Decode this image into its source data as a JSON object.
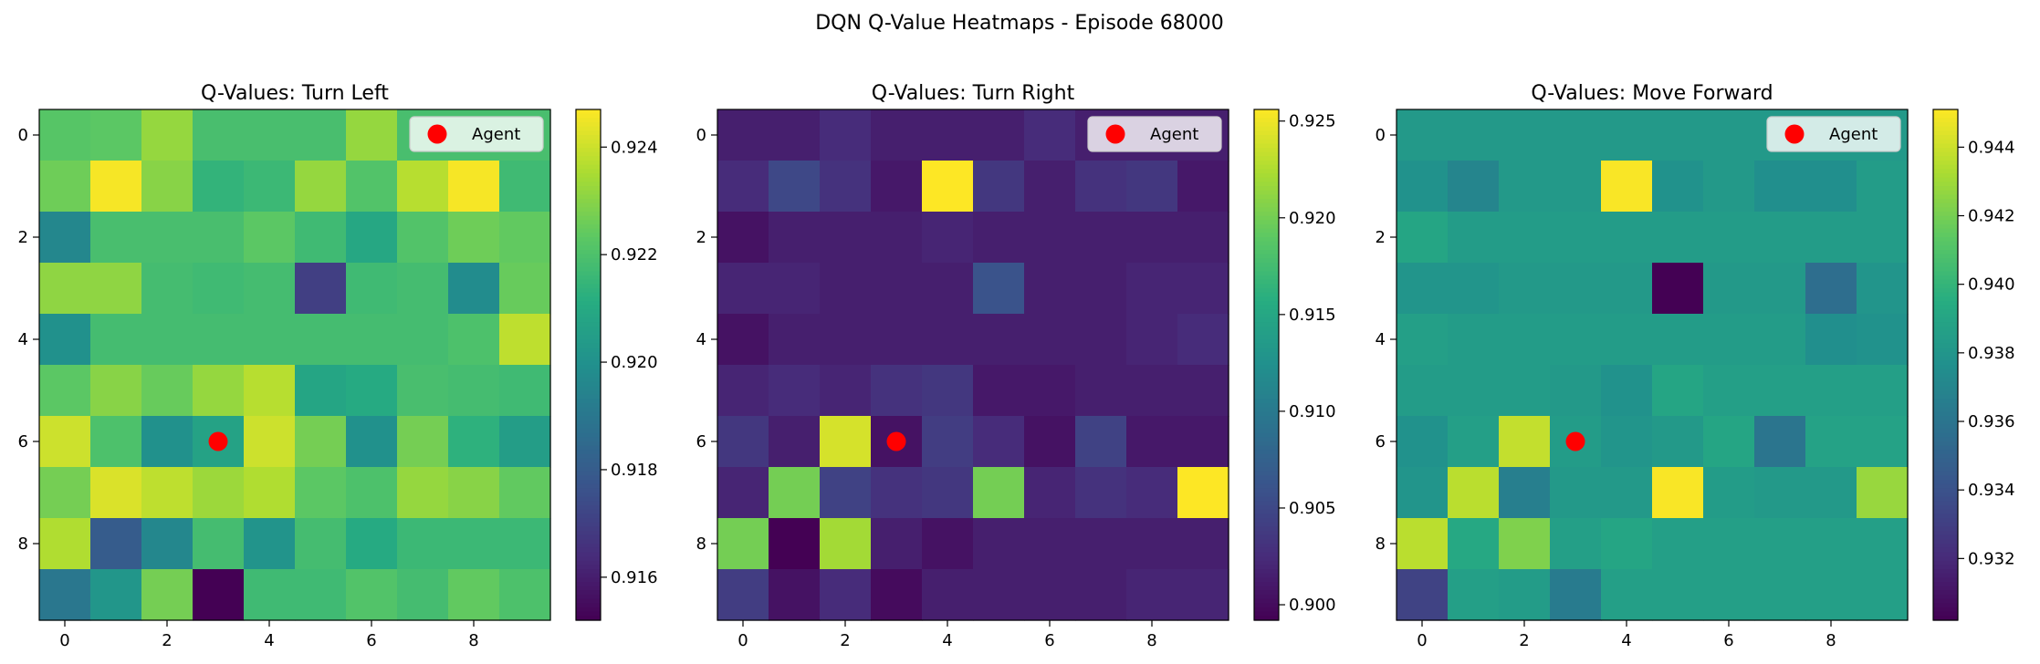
{
  "figure": {
    "title": "DQN Q-Value Heatmaps - Episode 68000"
  },
  "colors": {
    "colormap": "viridis",
    "agent_marker": "#ff0000",
    "legend_frame": "#cccccc"
  },
  "chart_data": [
    {
      "type": "heatmap",
      "title": "Q-Values: Turn Left",
      "xlabel": "",
      "ylabel": "",
      "x_ticks": [
        0,
        2,
        4,
        6,
        8
      ],
      "y_ticks": [
        0,
        2,
        4,
        6,
        8
      ],
      "colorbar": {
        "range": [
          0.9152,
          0.9247
        ],
        "ticks": [
          "0.916",
          "0.918",
          "0.920",
          "0.922",
          "0.924"
        ]
      },
      "agent": {
        "x": 3,
        "y": 6,
        "label": "Agent"
      },
      "legend": {
        "location": "upper right",
        "entries": [
          "Agent"
        ]
      },
      "values": [
        [
          0.9222,
          0.9223,
          0.9232,
          0.9219,
          0.9219,
          0.9219,
          0.9232,
          0.9219,
          0.9219,
          0.9219
        ],
        [
          0.9226,
          0.9246,
          0.923,
          0.9214,
          0.9216,
          0.9232,
          0.9221,
          0.9237,
          0.9246,
          0.9217
        ],
        [
          0.9196,
          0.9219,
          0.9219,
          0.9219,
          0.9223,
          0.9217,
          0.9209,
          0.9221,
          0.9226,
          0.9224
        ],
        [
          0.9231,
          0.9231,
          0.9218,
          0.9217,
          0.9218,
          0.917,
          0.9217,
          0.9218,
          0.9198,
          0.9225
        ],
        [
          0.92,
          0.9218,
          0.9218,
          0.9218,
          0.9218,
          0.9218,
          0.9218,
          0.9218,
          0.922,
          0.9238
        ],
        [
          0.9223,
          0.923,
          0.9225,
          0.9232,
          0.9237,
          0.9208,
          0.921,
          0.9219,
          0.9218,
          0.9217
        ],
        [
          0.924,
          0.922,
          0.92,
          0.9207,
          0.924,
          0.9227,
          0.92,
          0.9227,
          0.9213,
          0.9205
        ],
        [
          0.9227,
          0.9242,
          0.9238,
          0.9233,
          0.9236,
          0.9223,
          0.922,
          0.9232,
          0.923,
          0.9224
        ],
        [
          0.9236,
          0.918,
          0.9196,
          0.9218,
          0.9201,
          0.9218,
          0.921,
          0.9216,
          0.9216,
          0.9216
        ],
        [
          0.919,
          0.9202,
          0.9227,
          0.9152,
          0.9217,
          0.9217,
          0.9221,
          0.9218,
          0.9224,
          0.922
        ]
      ]
    },
    {
      "type": "heatmap",
      "title": "Q-Values: Turn Right",
      "xlabel": "",
      "ylabel": "",
      "x_ticks": [
        0,
        2,
        4,
        6,
        8
      ],
      "y_ticks": [
        0,
        2,
        4,
        6,
        8
      ],
      "colorbar": {
        "range": [
          0.8992,
          0.9256
        ],
        "ticks": [
          "0.900",
          "0.905",
          "0.910",
          "0.915",
          "0.920",
          "0.925"
        ]
      },
      "agent": {
        "x": 3,
        "y": 6,
        "label": "Agent"
      },
      "legend": {
        "location": "upper right",
        "entries": [
          "Agent"
        ]
      },
      "values": [
        [
          0.9015,
          0.9015,
          0.9025,
          0.9015,
          0.9015,
          0.9015,
          0.9025,
          0.9015,
          0.9015,
          0.9015
        ],
        [
          0.9025,
          0.905,
          0.903,
          0.901,
          0.9256,
          0.9035,
          0.9015,
          0.903,
          0.9035,
          0.901
        ],
        [
          0.9005,
          0.9015,
          0.9015,
          0.9015,
          0.902,
          0.9015,
          0.9015,
          0.9015,
          0.9015,
          0.9015
        ],
        [
          0.902,
          0.902,
          0.9015,
          0.9015,
          0.9015,
          0.906,
          0.9015,
          0.9015,
          0.902,
          0.902
        ],
        [
          0.9005,
          0.9015,
          0.9015,
          0.9015,
          0.9015,
          0.9015,
          0.9015,
          0.9015,
          0.902,
          0.9025
        ],
        [
          0.902,
          0.9025,
          0.902,
          0.903,
          0.9035,
          0.901,
          0.901,
          0.9015,
          0.9015,
          0.9015
        ],
        [
          0.9035,
          0.9015,
          0.924,
          0.9005,
          0.904,
          0.9025,
          0.9005,
          0.9045,
          0.901,
          0.901
        ],
        [
          0.902,
          0.92,
          0.9045,
          0.903,
          0.9035,
          0.92,
          0.902,
          0.903,
          0.9025,
          0.9256
        ],
        [
          0.92,
          0.8992,
          0.922,
          0.9015,
          0.9005,
          0.9015,
          0.9015,
          0.9015,
          0.9015,
          0.9015
        ],
        [
          0.904,
          0.9005,
          0.9025,
          0.9,
          0.9015,
          0.9015,
          0.9015,
          0.9015,
          0.902,
          0.902
        ]
      ]
    },
    {
      "type": "heatmap",
      "title": "Q-Values: Move Forward",
      "xlabel": "",
      "ylabel": "",
      "x_ticks": [
        0,
        2,
        4,
        6,
        8
      ],
      "y_ticks": [
        0,
        2,
        4,
        6,
        8
      ],
      "colorbar": {
        "range": [
          0.9302,
          0.9451
        ],
        "ticks": [
          "0.932",
          "0.934",
          "0.936",
          "0.938",
          "0.940",
          "0.942",
          "0.944"
        ]
      },
      "agent": {
        "x": 3,
        "y": 6,
        "label": "Agent"
      },
      "legend": {
        "location": "upper right",
        "entries": [
          "Agent"
        ]
      },
      "values": [
        [
          0.9382,
          0.9382,
          0.9382,
          0.9382,
          0.9382,
          0.9382,
          0.9382,
          0.9382,
          0.9382,
          0.9382
        ],
        [
          0.9378,
          0.937,
          0.9382,
          0.9382,
          0.945,
          0.9378,
          0.9382,
          0.9376,
          0.9376,
          0.9384
        ],
        [
          0.939,
          0.9384,
          0.9384,
          0.9384,
          0.9384,
          0.9384,
          0.9384,
          0.9384,
          0.9384,
          0.9384
        ],
        [
          0.938,
          0.938,
          0.9382,
          0.9382,
          0.9382,
          0.9302,
          0.9382,
          0.9382,
          0.9356,
          0.938
        ],
        [
          0.9386,
          0.9384,
          0.9384,
          0.9384,
          0.9384,
          0.9384,
          0.9384,
          0.9384,
          0.9376,
          0.9378
        ],
        [
          0.9384,
          0.9384,
          0.9384,
          0.9382,
          0.9378,
          0.939,
          0.9386,
          0.9386,
          0.9386,
          0.9386
        ],
        [
          0.9378,
          0.9386,
          0.9438,
          0.9384,
          0.938,
          0.9382,
          0.939,
          0.936,
          0.9388,
          0.9388
        ],
        [
          0.938,
          0.9436,
          0.9366,
          0.9382,
          0.9382,
          0.945,
          0.9384,
          0.9382,
          0.9382,
          0.9428
        ],
        [
          0.9436,
          0.9392,
          0.9422,
          0.9386,
          0.939,
          0.9386,
          0.9386,
          0.9386,
          0.9386,
          0.9386
        ],
        [
          0.9332,
          0.9386,
          0.9384,
          0.9364,
          0.9386,
          0.9386,
          0.9386,
          0.9386,
          0.9386,
          0.9386
        ]
      ]
    }
  ]
}
